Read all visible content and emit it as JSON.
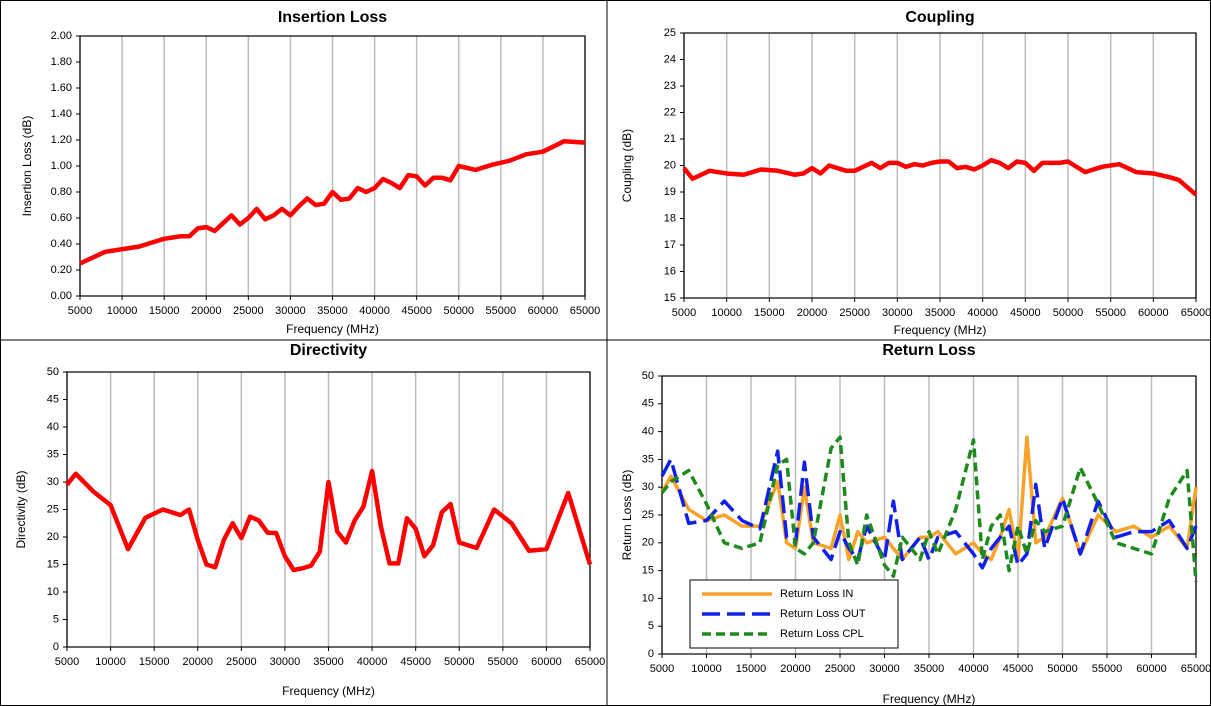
{
  "chart_data": [
    {
      "type": "line",
      "title": "Insertion Loss",
      "xlabel": "Frequency (MHz)",
      "ylabel": "Insertion Loss (dB)",
      "grid": "x",
      "xlim": [
        5000,
        65000
      ],
      "xticks": [
        5000,
        10000,
        15000,
        20000,
        25000,
        30000,
        35000,
        40000,
        45000,
        50000,
        55000,
        60000,
        65000
      ],
      "ylim": [
        0,
        2
      ],
      "yticks": [
        {
          "value": 0,
          "label": "0.00"
        },
        {
          "value": 0.2,
          "label": "0.20"
        },
        {
          "value": 0.4,
          "label": "0.40"
        },
        {
          "value": 0.6,
          "label": "0.60"
        },
        {
          "value": 0.8,
          "label": "0.80"
        },
        {
          "value": 1,
          "label": "1.00"
        },
        {
          "value": 1.2,
          "label": "1.20"
        },
        {
          "value": 1.4,
          "label": "1.40"
        },
        {
          "value": 1.6,
          "label": "1.60"
        },
        {
          "value": 1.8,
          "label": "1.80"
        },
        {
          "value": 2,
          "label": "2.00"
        }
      ],
      "x": [
        5000,
        6000,
        7000,
        8000,
        9000,
        10000,
        11000,
        12000,
        13000,
        14000,
        15000,
        16000,
        17000,
        18000,
        19000,
        20000,
        21000,
        22000,
        23000,
        24000,
        25000,
        26000,
        27000,
        28000,
        29000,
        30000,
        31000,
        32000,
        33000,
        34000,
        35000,
        36000,
        37000,
        38000,
        39000,
        40000,
        41000,
        42000,
        43000,
        44000,
        45000,
        46000,
        47000,
        48000,
        49000,
        50000,
        52000,
        54000,
        56000,
        58000,
        60000,
        62500,
        65000
      ],
      "series": [
        {
          "color": "#ff0000",
          "line_style": "solid",
          "values": [
            0.25,
            0.28,
            0.31,
            0.34,
            0.35,
            0.36,
            0.37,
            0.38,
            0.4,
            0.42,
            0.44,
            0.45,
            0.46,
            0.46,
            0.52,
            0.53,
            0.5,
            0.56,
            0.62,
            0.55,
            0.6,
            0.67,
            0.59,
            0.62,
            0.67,
            0.62,
            0.69,
            0.75,
            0.7,
            0.71,
            0.8,
            0.74,
            0.75,
            0.83,
            0.8,
            0.83,
            0.9,
            0.87,
            0.83,
            0.93,
            0.92,
            0.85,
            0.91,
            0.91,
            0.89,
            1.0,
            0.97,
            1.01,
            1.04,
            1.09,
            1.11,
            1.19,
            1.18
          ]
        }
      ]
    },
    {
      "type": "line",
      "title": "Coupling",
      "xlabel": "Frequency (MHz)",
      "ylabel": "Coupling (dB)",
      "grid": "x",
      "xlim": [
        5000,
        65000
      ],
      "xticks": [
        5000,
        10000,
        15000,
        20000,
        25000,
        30000,
        35000,
        40000,
        45000,
        50000,
        55000,
        60000,
        65000
      ],
      "ylim": [
        15,
        25
      ],
      "yticks": [
        15,
        16,
        17,
        18,
        19,
        20,
        21,
        22,
        23,
        24,
        25
      ],
      "x": [
        5000,
        6000,
        8000,
        10000,
        12000,
        14000,
        16000,
        18000,
        19000,
        20000,
        21000,
        22000,
        24000,
        25000,
        27000,
        28000,
        29000,
        30000,
        31000,
        32000,
        33000,
        34000,
        35000,
        36000,
        37000,
        38000,
        39000,
        40000,
        41000,
        42000,
        43000,
        44000,
        45000,
        46000,
        47000,
        48000,
        49000,
        50000,
        52000,
        54000,
        56000,
        58000,
        60000,
        62000,
        63000,
        65000
      ],
      "series": [
        {
          "color": "#ff0000",
          "line_style": "solid",
          "values": [
            19.9,
            19.5,
            19.8,
            19.7,
            19.65,
            19.85,
            19.8,
            19.65,
            19.7,
            19.9,
            19.7,
            20.0,
            19.8,
            19.8,
            20.1,
            19.9,
            20.1,
            20.1,
            19.95,
            20.05,
            20.0,
            20.1,
            20.15,
            20.15,
            19.9,
            19.95,
            19.85,
            20.0,
            20.2,
            20.1,
            19.9,
            20.15,
            20.1,
            19.8,
            20.1,
            20.1,
            20.1,
            20.15,
            19.75,
            19.95,
            20.05,
            19.75,
            19.7,
            19.55,
            19.45,
            18.9
          ]
        }
      ]
    },
    {
      "type": "line",
      "title": "Directivity",
      "xlabel": "Frequency (MHz)",
      "ylabel": "Directivity (dB)",
      "grid": "x",
      "xlim": [
        5000,
        65000
      ],
      "xticks": [
        5000,
        10000,
        15000,
        20000,
        25000,
        30000,
        35000,
        40000,
        45000,
        50000,
        55000,
        60000,
        65000
      ],
      "ylim": [
        0,
        50
      ],
      "yticks": [
        0,
        5,
        10,
        15,
        20,
        25,
        30,
        35,
        40,
        45,
        50
      ],
      "x": [
        5000,
        6000,
        8000,
        10000,
        12000,
        14000,
        16000,
        18000,
        19000,
        20000,
        21000,
        22000,
        23000,
        24000,
        25000,
        26000,
        27000,
        28000,
        29000,
        30000,
        31000,
        32000,
        33000,
        34000,
        35000,
        36000,
        37000,
        38000,
        39000,
        40000,
        41000,
        42000,
        43000,
        44000,
        45000,
        46000,
        47000,
        48000,
        49000,
        50000,
        52000,
        54000,
        56000,
        58000,
        60000,
        62500,
        65000
      ],
      "series": [
        {
          "color": "#ff0000",
          "line_style": "solid",
          "values": [
            29.5,
            31.5,
            28.3,
            25.8,
            17.8,
            23.5,
            25,
            24,
            25,
            19.5,
            15,
            14.5,
            19.5,
            22.5,
            19.8,
            23.7,
            23,
            20.8,
            20.7,
            16.5,
            14,
            14.3,
            14.8,
            17.3,
            30,
            21,
            19,
            23,
            25.5,
            32,
            22,
            15.2,
            15.2,
            23.4,
            21.5,
            16.5,
            18.5,
            24.5,
            26,
            19,
            18,
            25,
            22.5,
            17.5,
            17.8,
            28,
            15
          ]
        }
      ]
    },
    {
      "type": "line",
      "title": "Return Loss",
      "xlabel": "Frequency (MHz)",
      "ylabel": "Return Loss (dB)",
      "grid": "x",
      "legend": "lower left",
      "xlim": [
        5000,
        65000
      ],
      "xticks": [
        5000,
        10000,
        15000,
        20000,
        25000,
        30000,
        35000,
        40000,
        45000,
        50000,
        55000,
        60000,
        65000
      ],
      "ylim": [
        0,
        50
      ],
      "yticks": [
        0,
        5,
        10,
        15,
        20,
        25,
        30,
        35,
        40,
        45,
        50
      ],
      "x": [
        5000,
        6000,
        8000,
        10000,
        12000,
        14000,
        16000,
        18000,
        19000,
        20000,
        21000,
        22000,
        24000,
        25000,
        26000,
        27000,
        28000,
        30000,
        31000,
        32000,
        34000,
        35000,
        36000,
        38000,
        40000,
        41000,
        42000,
        43000,
        44000,
        45000,
        46000,
        47000,
        48000,
        50000,
        52000,
        54000,
        56000,
        58000,
        60000,
        62000,
        64000,
        65000
      ],
      "series": [
        {
          "name": "Return Loss IN",
          "color": "#f7a229",
          "line_style": "solid",
          "values": [
            29,
            32,
            26,
            24,
            25,
            23,
            23,
            31,
            20,
            19,
            30,
            20,
            19,
            25,
            17,
            22,
            20,
            21,
            19,
            17,
            21,
            21,
            22,
            18,
            20,
            18,
            17,
            21,
            26,
            17,
            39,
            20,
            21,
            28,
            18,
            25,
            22,
            23,
            21,
            23,
            19,
            30
          ]
        },
        {
          "name": "Return Loss OUT",
          "color": "#1020e8",
          "line_style": "long-dash",
          "values": [
            32,
            35,
            23.5,
            24,
            27.5,
            24,
            22.5,
            36.5,
            21,
            20,
            34.5,
            21,
            17,
            22,
            19,
            17,
            23,
            17,
            27.5,
            17,
            21,
            17,
            21,
            22,
            18,
            15.5,
            19,
            21,
            23,
            16,
            18,
            30.5,
            19,
            28,
            18,
            27.5,
            21,
            22,
            22,
            24,
            19,
            23
          ]
        },
        {
          "name": "Return Loss CPL",
          "color": "#1e8a1e",
          "line_style": "dash",
          "values": [
            29,
            31,
            33,
            27,
            20,
            19,
            20,
            34,
            35,
            19,
            18,
            20,
            37,
            39,
            20,
            16,
            25,
            16,
            14,
            21,
            17,
            22,
            18,
            26,
            38.5,
            17,
            23,
            25,
            15,
            23,
            18,
            24,
            22,
            23,
            33.5,
            27,
            20,
            19,
            18,
            28,
            33,
            13
          ]
        }
      ]
    }
  ]
}
